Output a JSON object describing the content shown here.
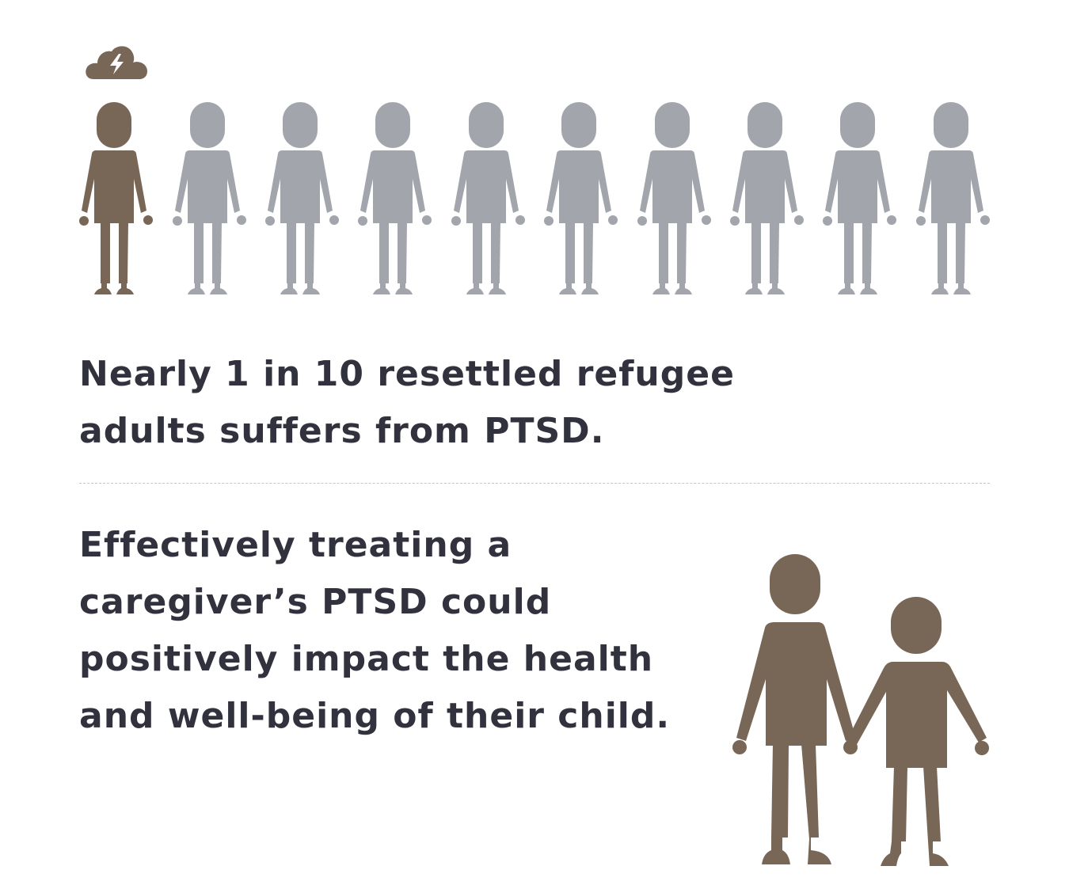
{
  "figure_row": {
    "total": 10,
    "highlighted": 1,
    "highlight_color": "#786656",
    "base_color": "#a2a5ac",
    "highlight_icon": "storm-cloud-icon"
  },
  "statement_1": "Nearly 1 in 10 resettled refugee adults suffers from PTSD.",
  "statement_2": "Effectively treating a caregiver’s PTSD could positively impact the health and well-being of their child.",
  "pair_icon": "adult-and-child-holding-hands-icon",
  "colors": {
    "text": "#31323d",
    "divider": "#c6c6c8",
    "background": "#ffffff"
  }
}
